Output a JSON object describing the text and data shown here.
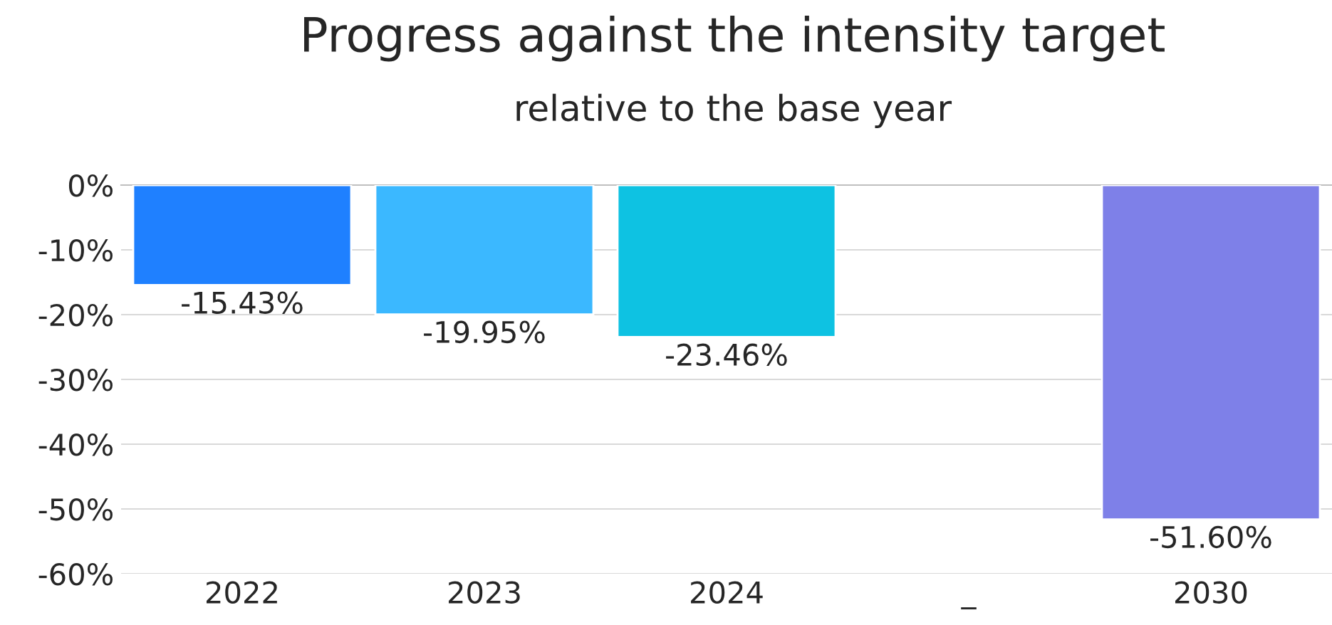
{
  "chart_data": {
    "type": "bar",
    "title": "Progress against the intensity target",
    "subtitle": "relative to the base year",
    "categories": [
      "2022",
      "2023",
      "2024",
      "_",
      "2030"
    ],
    "values": [
      -15.43,
      -19.95,
      -23.46,
      null,
      -51.6
    ],
    "colors": [
      "#1f80ff",
      "#3bb8ff",
      "#0ec2e2",
      null,
      "#7e80e8"
    ],
    "value_labels": [
      "-15.43%",
      "-19.95%",
      "-23.46%",
      null,
      "-51.60%"
    ],
    "ylim": [
      -60,
      0
    ],
    "yticks": [
      {
        "value": 0,
        "label": "0%"
      },
      {
        "value": -10,
        "label": "-10%"
      },
      {
        "value": -20,
        "label": "-20%"
      },
      {
        "value": -30,
        "label": "-30%"
      },
      {
        "value": -40,
        "label": "-40%"
      },
      {
        "value": -50,
        "label": "-50%"
      },
      {
        "value": -60,
        "label": "-60%"
      }
    ],
    "grid": "y",
    "legend": false
  }
}
